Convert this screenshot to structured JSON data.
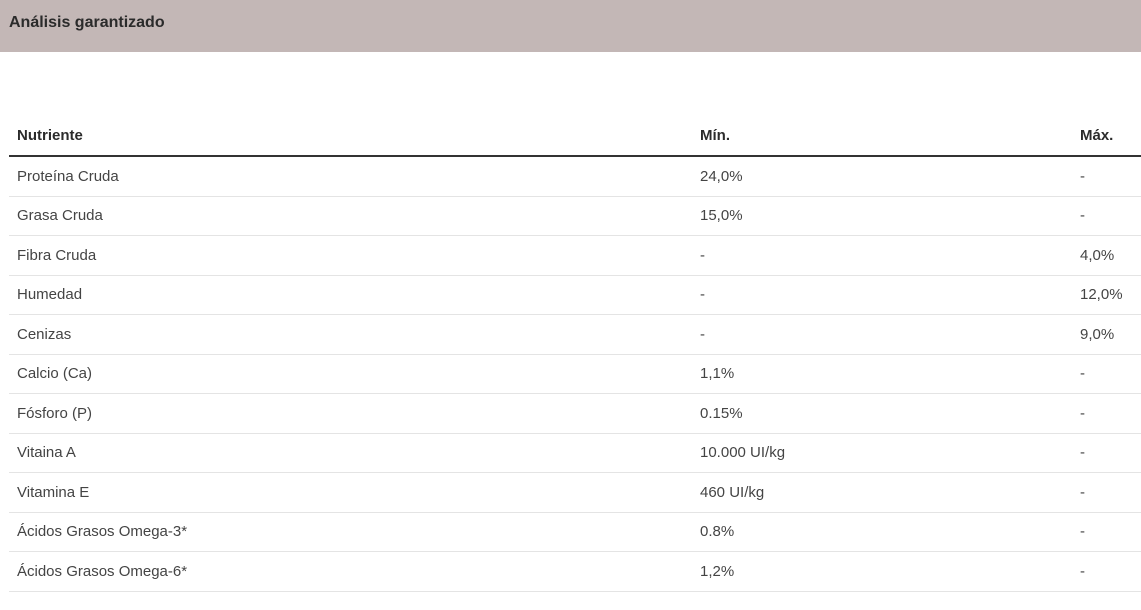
{
  "section": {
    "title": "Análisis garantizado"
  },
  "table": {
    "headers": {
      "nutrient": "Nutriente",
      "min": "Mín.",
      "max": "Máx."
    },
    "rows": [
      {
        "nutrient": "Proteína Cruda",
        "min": "24,0%",
        "max": "-"
      },
      {
        "nutrient": "Grasa Cruda",
        "min": "15,0%",
        "max": "-"
      },
      {
        "nutrient": "Fibra Cruda",
        "min": "-",
        "max": "4,0%"
      },
      {
        "nutrient": "Humedad",
        "min": "-",
        "max": "12,0%"
      },
      {
        "nutrient": "Cenizas",
        "min": "-",
        "max": "9,0%"
      },
      {
        "nutrient": "Calcio (Ca)",
        "min": "1,1%",
        "max": "-"
      },
      {
        "nutrient": "Fósforo (P)",
        "min": "0.15%",
        "max": "-"
      },
      {
        "nutrient": "Vitaina A",
        "min": "10.000 UI/kg",
        "max": "-"
      },
      {
        "nutrient": "Vitamina E",
        "min": "460 UI/kg",
        "max": "-"
      },
      {
        "nutrient": "Ácidos Grasos Omega-3*",
        "min": "0.8%",
        "max": "-"
      },
      {
        "nutrient": "Ácidos Grasos Omega-6*",
        "min": "1,2%",
        "max": "-"
      }
    ]
  },
  "colors": {
    "header_background": "#c3b7b6",
    "header_rule": "#333333",
    "row_divider": "#e4e4e4"
  }
}
